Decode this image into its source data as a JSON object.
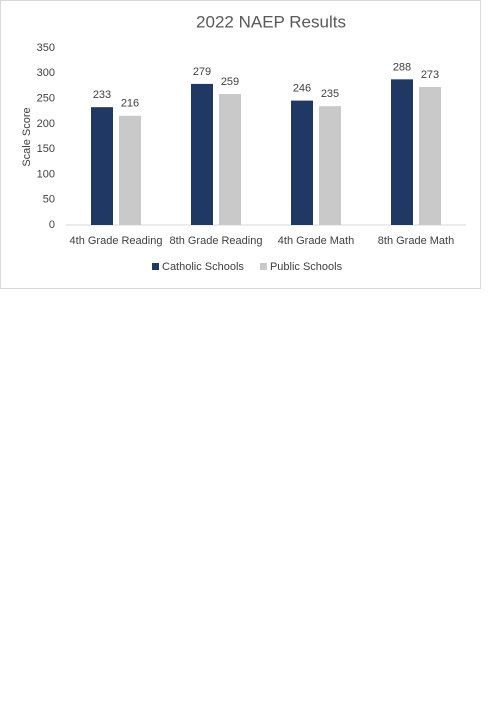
{
  "chart_data": {
    "type": "bar",
    "title": "2022 NAEP Results",
    "y_label": "Scale Score",
    "categories": [
      "4th Grade Reading",
      "8th Grade Reading",
      "4th Grade Math",
      "8th Grade Math"
    ],
    "series": [
      {
        "name": "Catholic Schools",
        "color": "#203864",
        "values": [
          233,
          279,
          246,
          288
        ]
      },
      {
        "name": "Public Schools",
        "color": "#c9c9c9",
        "values": [
          216,
          259,
          235,
          273
        ]
      }
    ],
    "ylim": [
      0,
      350
    ],
    "yticks": [
      0,
      50,
      100,
      150,
      200,
      250,
      300,
      350
    ],
    "grid": false,
    "legend": "bottom"
  }
}
